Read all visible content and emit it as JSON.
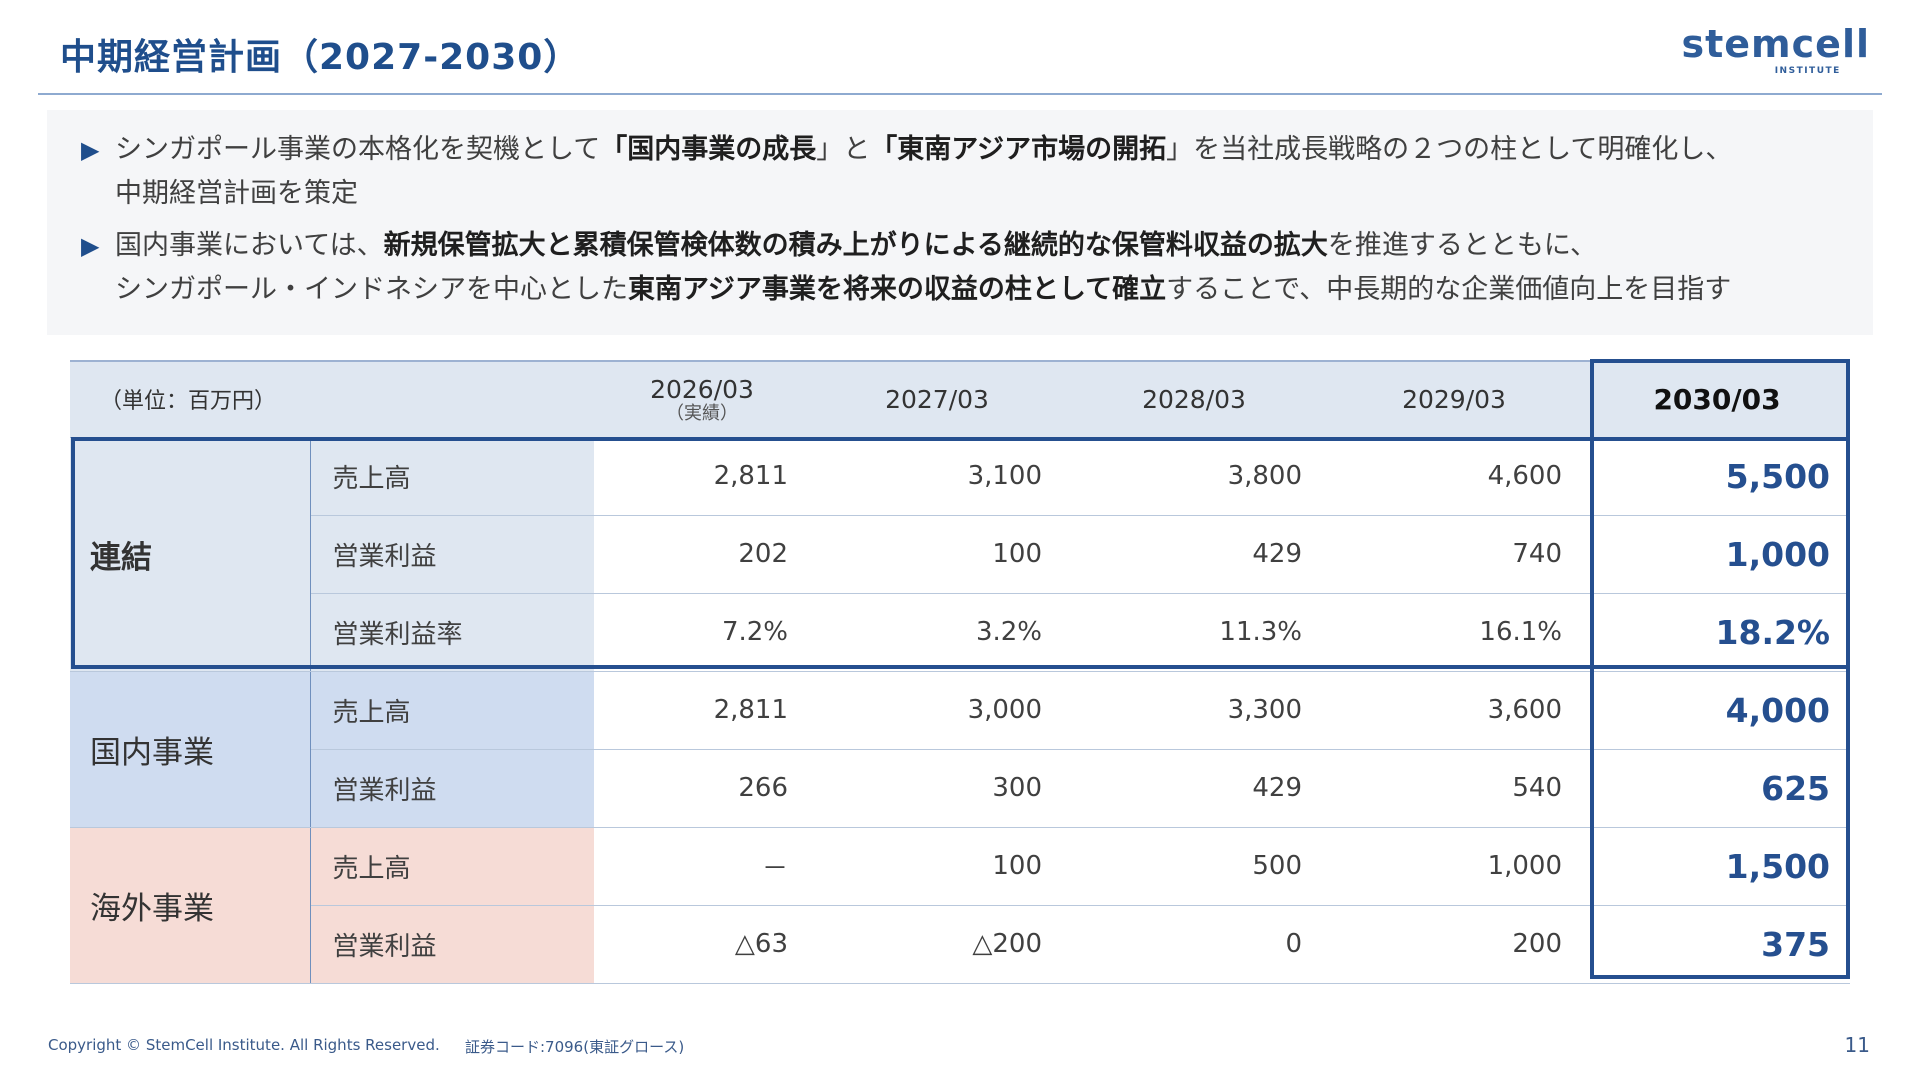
{
  "title": "中期経営計画（2027-2030）",
  "logo": {
    "main": "stemcell",
    "sub": "INSTITUTE"
  },
  "summary": {
    "bullet1": {
      "t1": "シンガポール事業の本格化を契機として",
      "b1": "「国内事業の成長",
      "t2": "」と",
      "b2": "「東南アジア市場の開拓",
      "t3": "」を当社成長戦略の２つの柱として明確化し、",
      "t4": "中期経営計画を策定"
    },
    "bullet2": {
      "t1": "国内事業においては、",
      "b1": "新規保管拡大と累積保管検体数の積み上がりによる継続的な保管料収益の拡大",
      "t2": "を推進するとともに、",
      "t3": "シンガポール・インドネシアを中心とした",
      "b2": "東南アジア事業を将来の収益の柱として確立",
      "t4": "することで、中長期的な企業価値向上を目指す"
    }
  },
  "table": {
    "unit": "（単位：百万円）",
    "years": [
      {
        "label": "2026/03",
        "sub": "（実績）"
      },
      {
        "label": "2027/03",
        "sub": ""
      },
      {
        "label": "2028/03",
        "sub": ""
      },
      {
        "label": "2029/03",
        "sub": ""
      },
      {
        "label": "2030/03",
        "sub": ""
      }
    ],
    "groups": {
      "consolidated": {
        "name": "連結",
        "rows": [
          {
            "item": "売上高",
            "values": [
              "2,811",
              "3,100",
              "3,800",
              "4,600",
              "5,500"
            ]
          },
          {
            "item": "営業利益",
            "values": [
              "202",
              "100",
              "429",
              "740",
              "1,000"
            ]
          },
          {
            "item": "営業利益率",
            "values": [
              "7.2%",
              "3.2%",
              "11.3%",
              "16.1%",
              "18.2%"
            ]
          }
        ]
      },
      "domestic": {
        "name": "国内事業",
        "rows": [
          {
            "item": "売上高",
            "values": [
              "2,811",
              "3,000",
              "3,300",
              "3,600",
              "4,000"
            ]
          },
          {
            "item": "営業利益",
            "values": [
              "266",
              "300",
              "429",
              "540",
              "625"
            ]
          }
        ]
      },
      "overseas": {
        "name": "海外事業",
        "rows": [
          {
            "item": "売上高",
            "values": [
              "－",
              "100",
              "500",
              "1,000",
              "1,500"
            ]
          },
          {
            "item": "営業利益",
            "values": [
              "△63",
              "△200",
              "0",
              "200",
              "375"
            ]
          }
        ]
      }
    }
  },
  "footer": {
    "copyright": "Copyright © StemCell Institute. All Rights Reserved.",
    "code": "証券コード:7096(東証グロース)",
    "page": "11"
  },
  "colors": {
    "primary": "#254f8f",
    "header_bg": "#dfe7f1",
    "domestic_bg": "#cfdcf0",
    "overseas_bg": "#f6dcd6"
  }
}
